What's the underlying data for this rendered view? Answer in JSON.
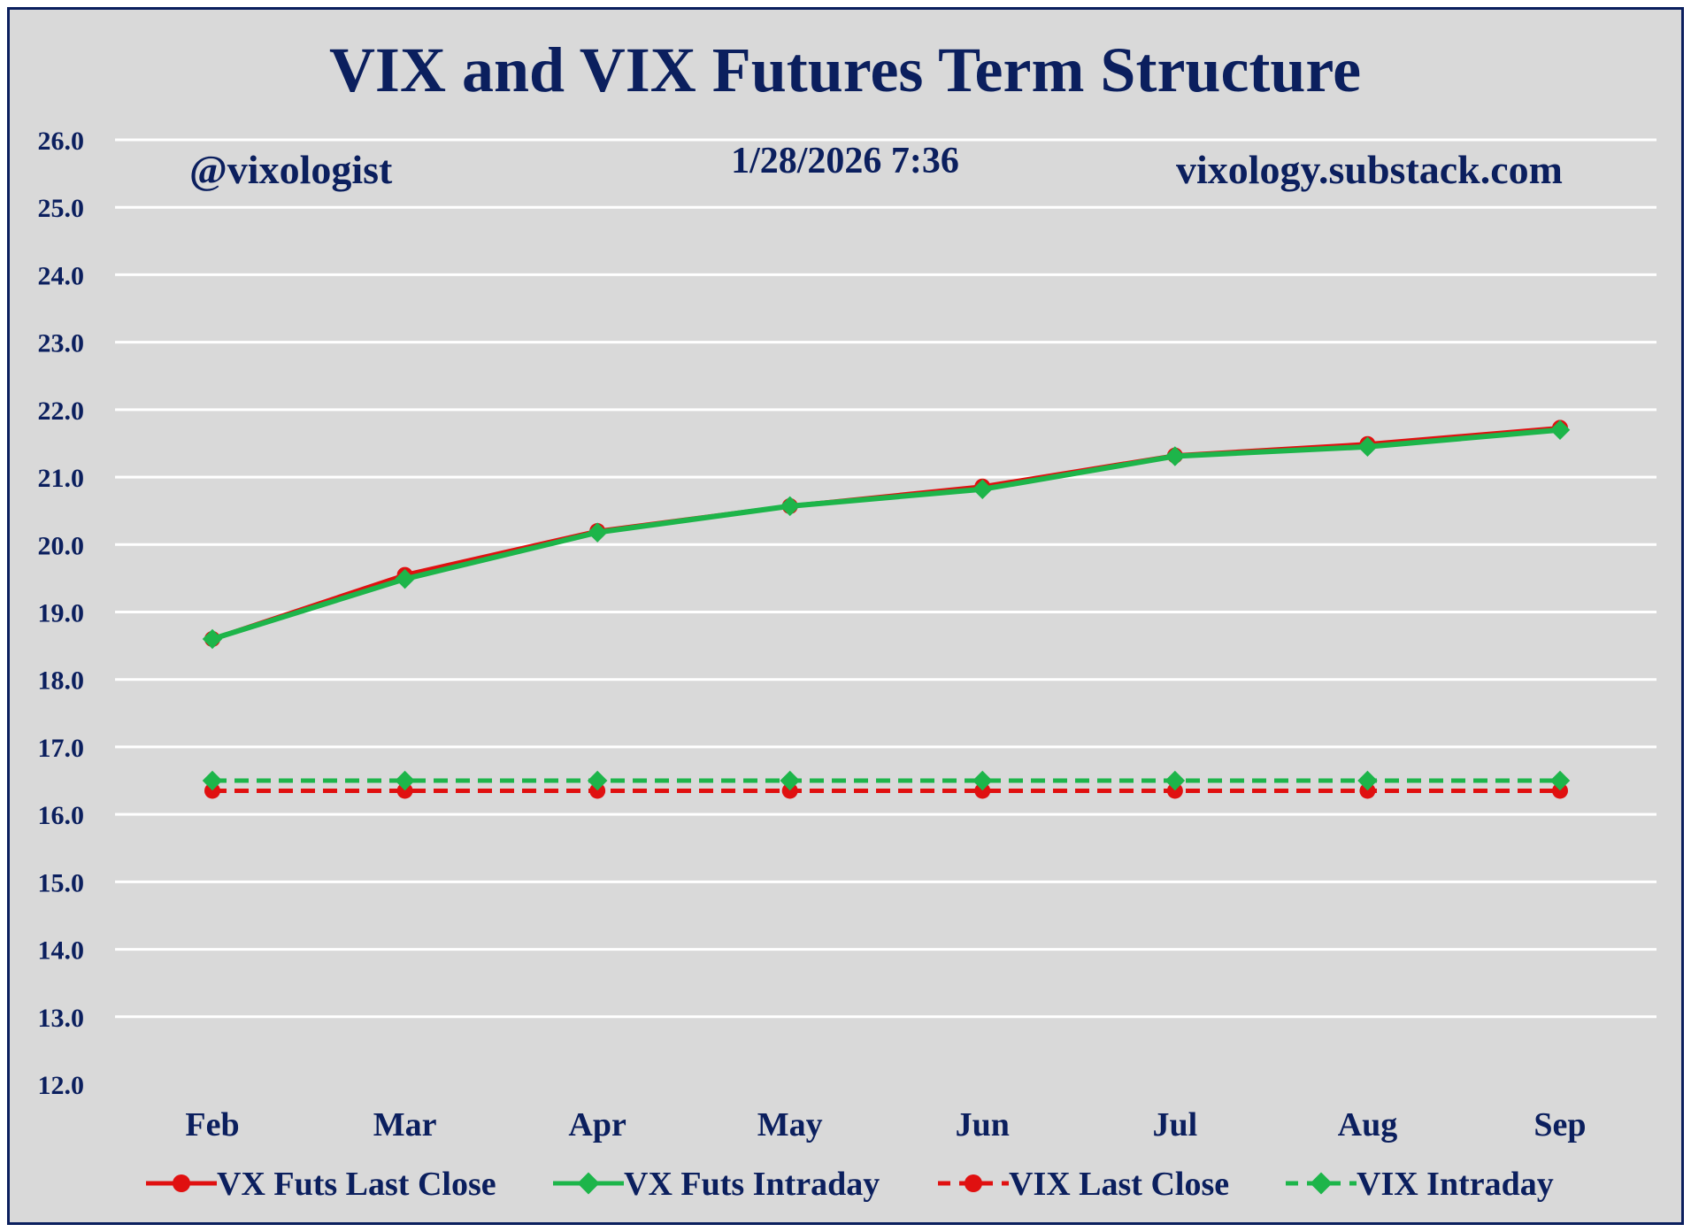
{
  "chart_data": {
    "type": "line",
    "title": "VIX and VIX Futures Term Structure",
    "annotations": {
      "handle": "@vixologist",
      "timestamp": "1/28/2026 7:36",
      "website": "vixology.substack.com"
    },
    "categories": [
      "Feb",
      "Mar",
      "Apr",
      "May",
      "Jun",
      "Jul",
      "Aug",
      "Sep"
    ],
    "ylim": [
      12.0,
      26.0
    ],
    "yticks": [
      "12.0",
      "13.0",
      "14.0",
      "15.0",
      "16.0",
      "17.0",
      "18.0",
      "19.0",
      "20.0",
      "21.0",
      "22.0",
      "23.0",
      "24.0",
      "25.0",
      "26.0"
    ],
    "grid": true,
    "legend_position": "bottom",
    "series": [
      {
        "name": "VX Futs Last Close",
        "values": [
          18.6,
          19.55,
          20.2,
          20.57,
          20.86,
          21.32,
          21.49,
          21.73
        ],
        "color": "#e01010",
        "marker": "circle",
        "dash": "solid"
      },
      {
        "name": "VX Futs Intraday",
        "values": [
          18.6,
          19.49,
          20.18,
          20.57,
          20.82,
          21.31,
          21.45,
          21.7
        ],
        "color": "#1db54a",
        "marker": "diamond",
        "dash": "solid"
      },
      {
        "name": "VIX Last Close",
        "values": [
          16.35,
          16.35,
          16.35,
          16.35,
          16.35,
          16.35,
          16.35,
          16.35
        ],
        "color": "#e01010",
        "marker": "circle",
        "dash": "dashed"
      },
      {
        "name": "VIX Intraday",
        "values": [
          16.5,
          16.5,
          16.5,
          16.5,
          16.5,
          16.5,
          16.5,
          16.5
        ],
        "color": "#1db54a",
        "marker": "diamond",
        "dash": "dashed"
      }
    ]
  }
}
